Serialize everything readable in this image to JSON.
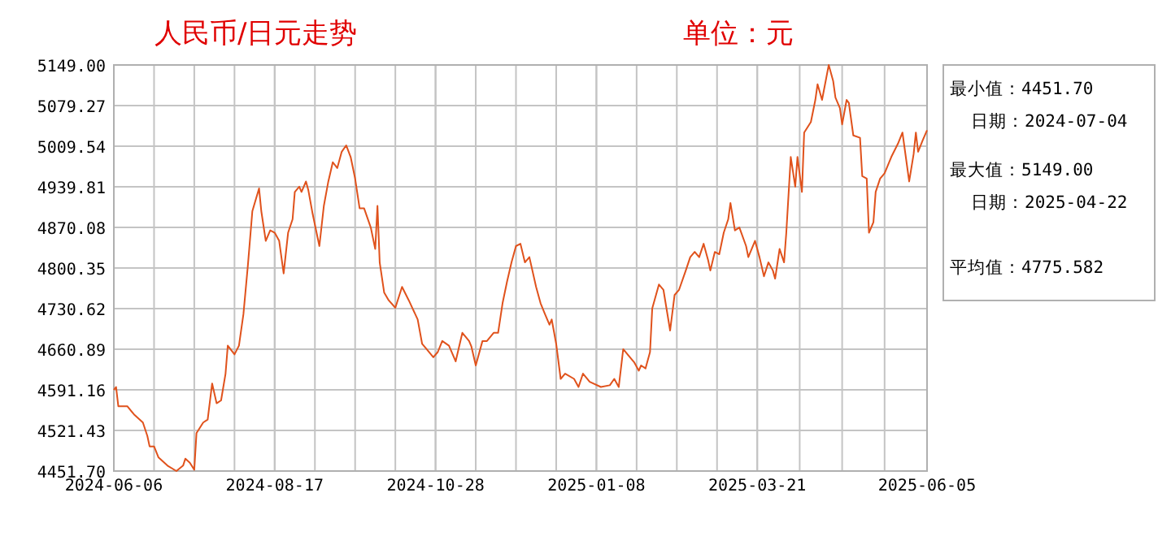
{
  "chart_data": {
    "type": "line",
    "title": "人民币/日元走势",
    "subtitle": "单位：元",
    "annotations": [
      "最小值：4451.70",
      "日期：2024-07-04",
      "最大值：5149.00",
      "日期：2025-04-22",
      "平均值：4775.582"
    ],
    "x": [
      "2024-06-06",
      "2024-06-07",
      "2024-06-08",
      "2024-06-12",
      "2024-06-15",
      "2024-06-19",
      "2024-06-21",
      "2024-06-22",
      "2024-06-24",
      "2024-06-26",
      "2024-06-30",
      "2024-07-04",
      "2024-07-07",
      "2024-07-08",
      "2024-07-10",
      "2024-07-12",
      "2024-07-13",
      "2024-07-16",
      "2024-07-18",
      "2024-07-20",
      "2024-07-22",
      "2024-07-24",
      "2024-07-26",
      "2024-07-27",
      "2024-07-30",
      "2024-08-01",
      "2024-08-03",
      "2024-08-05",
      "2024-08-07",
      "2024-08-10",
      "2024-08-11",
      "2024-08-13",
      "2024-08-15",
      "2024-08-17",
      "2024-08-19",
      "2024-08-21",
      "2024-08-23",
      "2024-08-25",
      "2024-08-26",
      "2024-08-28",
      "2024-08-29",
      "2024-08-31",
      "2024-09-01",
      "2024-09-03",
      "2024-09-06",
      "2024-09-08",
      "2024-09-10",
      "2024-09-12",
      "2024-09-14",
      "2024-09-16",
      "2024-09-18",
      "2024-09-20",
      "2024-09-22",
      "2024-09-24",
      "2024-09-26",
      "2024-09-29",
      "2024-10-01",
      "2024-10-02",
      "2024-10-03",
      "2024-10-05",
      "2024-10-07",
      "2024-10-10",
      "2024-10-13",
      "2024-10-16",
      "2024-10-20",
      "2024-10-22",
      "2024-10-24",
      "2024-10-27",
      "2024-10-29",
      "2024-10-31",
      "2024-11-03",
      "2024-11-06",
      "2024-11-09",
      "2024-11-12",
      "2024-11-13",
      "2024-11-15",
      "2024-11-18",
      "2024-11-20",
      "2024-11-23",
      "2024-11-25",
      "2024-11-27",
      "2024-11-29",
      "2024-12-01",
      "2024-12-03",
      "2024-12-05",
      "2024-12-07",
      "2024-12-09",
      "2024-12-12",
      "2024-12-14",
      "2024-12-16",
      "2024-12-18",
      "2024-12-19",
      "2024-12-21",
      "2024-12-23",
      "2024-12-25",
      "2024-12-29",
      "2024-12-31",
      "2025-01-02",
      "2025-01-05",
      "2025-01-10",
      "2025-01-14",
      "2025-01-16",
      "2025-01-18",
      "2025-01-20",
      "2025-01-23",
      "2025-01-25",
      "2025-01-27",
      "2025-01-28",
      "2025-01-30",
      "2025-02-01",
      "2025-02-02",
      "2025-02-05",
      "2025-02-07",
      "2025-02-10",
      "2025-02-12",
      "2025-02-14",
      "2025-02-17",
      "2025-02-19",
      "2025-02-21",
      "2025-02-23",
      "2025-02-25",
      "2025-02-27",
      "2025-02-28",
      "2025-03-02",
      "2025-03-04",
      "2025-03-06",
      "2025-03-08",
      "2025-03-09",
      "2025-03-11",
      "2025-03-13",
      "2025-03-16",
      "2025-03-17",
      "2025-03-20",
      "2025-03-22",
      "2025-03-24",
      "2025-03-26",
      "2025-03-28",
      "2025-03-29",
      "2025-03-31",
      "2025-04-02",
      "2025-04-03",
      "2025-04-05",
      "2025-04-07",
      "2025-04-08",
      "2025-04-10",
      "2025-04-11",
      "2025-04-14",
      "2025-04-16",
      "2025-04-17",
      "2025-04-19",
      "2025-04-22",
      "2025-04-24",
      "2025-04-25",
      "2025-04-27",
      "2025-04-28",
      "2025-04-30",
      "2025-05-01",
      "2025-05-03",
      "2025-05-06",
      "2025-05-07",
      "2025-05-09",
      "2025-05-10",
      "2025-05-12",
      "2025-05-13",
      "2025-05-15",
      "2025-05-17",
      "2025-05-20",
      "2025-05-23",
      "2025-05-25",
      "2025-05-26",
      "2025-05-28",
      "2025-05-30",
      "2025-05-31",
      "2025-06-01",
      "2025-06-03",
      "2025-06-05"
    ],
    "series": [
      {
        "color": "#e0521c",
        "values": [
          4591,
          4596,
          4563,
          4563,
          4549,
          4535,
          4512,
          4494,
          4494,
          4475,
          4461,
          4451.7,
          4461,
          4473,
          4466,
          4454,
          4517,
          4535,
          4540,
          4602,
          4568,
          4573,
          4619,
          4667,
          4652,
          4667,
          4721,
          4805,
          4898,
          4937,
          4898,
          4847,
          4865,
          4861,
          4847,
          4791,
          4861,
          4884,
          4931,
          4940,
          4931,
          4949,
          4935,
          4893,
          4838,
          4907,
          4949,
          4982,
          4972,
          5000,
          5011,
          4991,
          4954,
          4903,
          4903,
          4870,
          4833,
          4907,
          4810,
          4758,
          4745,
          4732,
          4768,
          4745,
          4712,
          4670,
          4661,
          4647,
          4656,
          4675,
          4667,
          4640,
          4689,
          4675,
          4666,
          4633,
          4675,
          4675,
          4689,
          4689,
          4740,
          4777,
          4810,
          4838,
          4842,
          4810,
          4819,
          4768,
          4740,
          4721,
          4703,
          4712,
          4670,
          4610,
          4619,
          4610,
          4596,
          4619,
          4605,
          4596,
          4599,
          4610,
          4596,
          4661,
          4647,
          4638,
          4624,
          4633,
          4628,
          4656,
          4731,
          4772,
          4763,
          4693,
          4754,
          4763,
          4796,
          4819,
          4828,
          4819,
          4842,
          4814,
          4796,
          4828,
          4824,
          4861,
          4884,
          4912,
          4865,
          4870,
          4838,
          4819,
          4847,
          4819,
          4786,
          4810,
          4796,
          4782,
          4833,
          4810,
          4861,
          4991,
          4940,
          4991,
          4931,
          5033,
          5051,
          5089,
          5116,
          5089,
          5149.0,
          5121,
          5093,
          5075,
          5047,
          5089,
          5084,
          5028,
          5024,
          4958,
          4954,
          4861,
          4879,
          4931,
          4954,
          4963,
          4991,
          5014,
          5033,
          5005,
          4949,
          4996,
          5033,
          5000,
          5019,
          5037
        ]
      }
    ],
    "xlim": [
      "2024-06-06",
      "2025-06-05"
    ],
    "xticks": [
      "2024-06-06",
      "2024-08-17",
      "2024-10-28",
      "2025-01-08",
      "2025-03-21",
      "2025-06-05"
    ],
    "ylim": [
      4451.7,
      5149.0
    ],
    "yticks": [
      {
        "value": 4451.7,
        "label": "4451.70"
      },
      {
        "value": 4521.43,
        "label": "4521.43"
      },
      {
        "value": 4591.16,
        "label": "4591.16"
      },
      {
        "value": 4660.89,
        "label": "4660.89"
      },
      {
        "value": 4730.62,
        "label": "4730.62"
      },
      {
        "value": 4800.35,
        "label": "4800.35"
      },
      {
        "value": 4870.08,
        "label": "4870.08"
      },
      {
        "value": 4939.81,
        "label": "4939.81"
      },
      {
        "value": 5009.54,
        "label": "5009.54"
      },
      {
        "value": 5079.27,
        "label": "5079.27"
      },
      {
        "value": 5149.0,
        "label": "5149.00"
      }
    ],
    "grid": true
  }
}
